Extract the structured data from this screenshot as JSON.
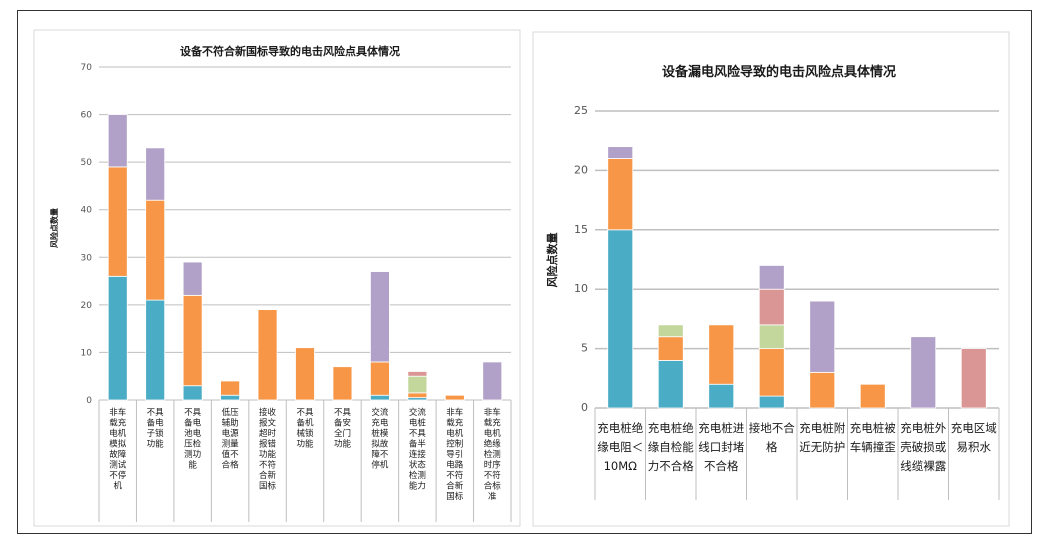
{
  "chart_data": [
    {
      "type": "bar",
      "stacked": true,
      "title": "设备不符合新国标导致的电击风险点具体情况",
      "ylabel": "风险点数量",
      "xlabel": "",
      "ylim": [
        0,
        70
      ],
      "yticks": [
        0,
        10,
        20,
        30,
        40,
        50,
        60,
        70
      ],
      "grid": true,
      "categories": [
        "非车载充电机模拟故障测试不停机",
        "不具备电子锁功能",
        "不具备电池电压检测功能",
        "低压辅助电源测量值不合格",
        "接收报文超时报错功能不符合新国标",
        "不具备机械锁功能",
        "不具备安全门功能",
        "交流充电桩模拟故障不停机",
        "交流电桩不具备半连接状态检测能力",
        "非车载充电机控制导引电路不符合新国标",
        "非车载充电机绝缘检测时序不符合标准"
      ],
      "series": [
        {
          "color": "#4bacc6",
          "values": [
            26,
            21,
            3,
            1,
            0,
            0,
            0,
            1,
            0.5,
            0,
            0
          ]
        },
        {
          "color": "#f79646",
          "values": [
            23,
            21,
            19,
            3,
            19,
            11,
            7,
            7,
            1,
            1,
            0
          ]
        },
        {
          "color": "#c3d69b",
          "values": [
            0,
            0,
            0,
            0,
            0,
            0,
            0,
            0,
            3.5,
            0,
            0
          ]
        },
        {
          "color": "#da9694",
          "values": [
            0,
            0,
            0,
            0,
            0,
            0,
            0,
            0,
            1,
            0,
            0
          ]
        },
        {
          "color": "#b1a0c7",
          "values": [
            11,
            11,
            7,
            0,
            0,
            0,
            0,
            19,
            0,
            0,
            8
          ]
        }
      ]
    },
    {
      "type": "bar",
      "stacked": true,
      "title": "设备漏电风险导致的电击风险点具体情况",
      "ylabel": "风险点数量",
      "xlabel": "",
      "ylim": [
        0,
        25
      ],
      "yticks": [
        0,
        5,
        10,
        15,
        20,
        25
      ],
      "grid": true,
      "categories": [
        "充电桩绝缘电阻＜10MΩ",
        "充电桩绝缘自检能力不合格",
        "充电桩进线口封堵不合格",
        "接地不合格",
        "充电桩附近无防护",
        "充电桩被车辆撞歪",
        "充电桩外壳破损或线缆裸露",
        "充电区域易积水"
      ],
      "series": [
        {
          "color": "#4bacc6",
          "values": [
            15,
            4,
            2,
            1,
            0,
            0,
            0,
            0
          ]
        },
        {
          "color": "#f79646",
          "values": [
            6,
            2,
            5,
            4,
            3,
            2,
            0,
            0
          ]
        },
        {
          "color": "#c3d69b",
          "values": [
            0,
            1,
            0,
            2,
            0,
            0,
            0,
            0
          ]
        },
        {
          "color": "#da9694",
          "values": [
            0,
            0,
            0,
            3,
            0,
            0,
            0,
            5
          ]
        },
        {
          "color": "#b1a0c7",
          "values": [
            1,
            0,
            0,
            2,
            6,
            0,
            6,
            0
          ]
        }
      ]
    }
  ]
}
